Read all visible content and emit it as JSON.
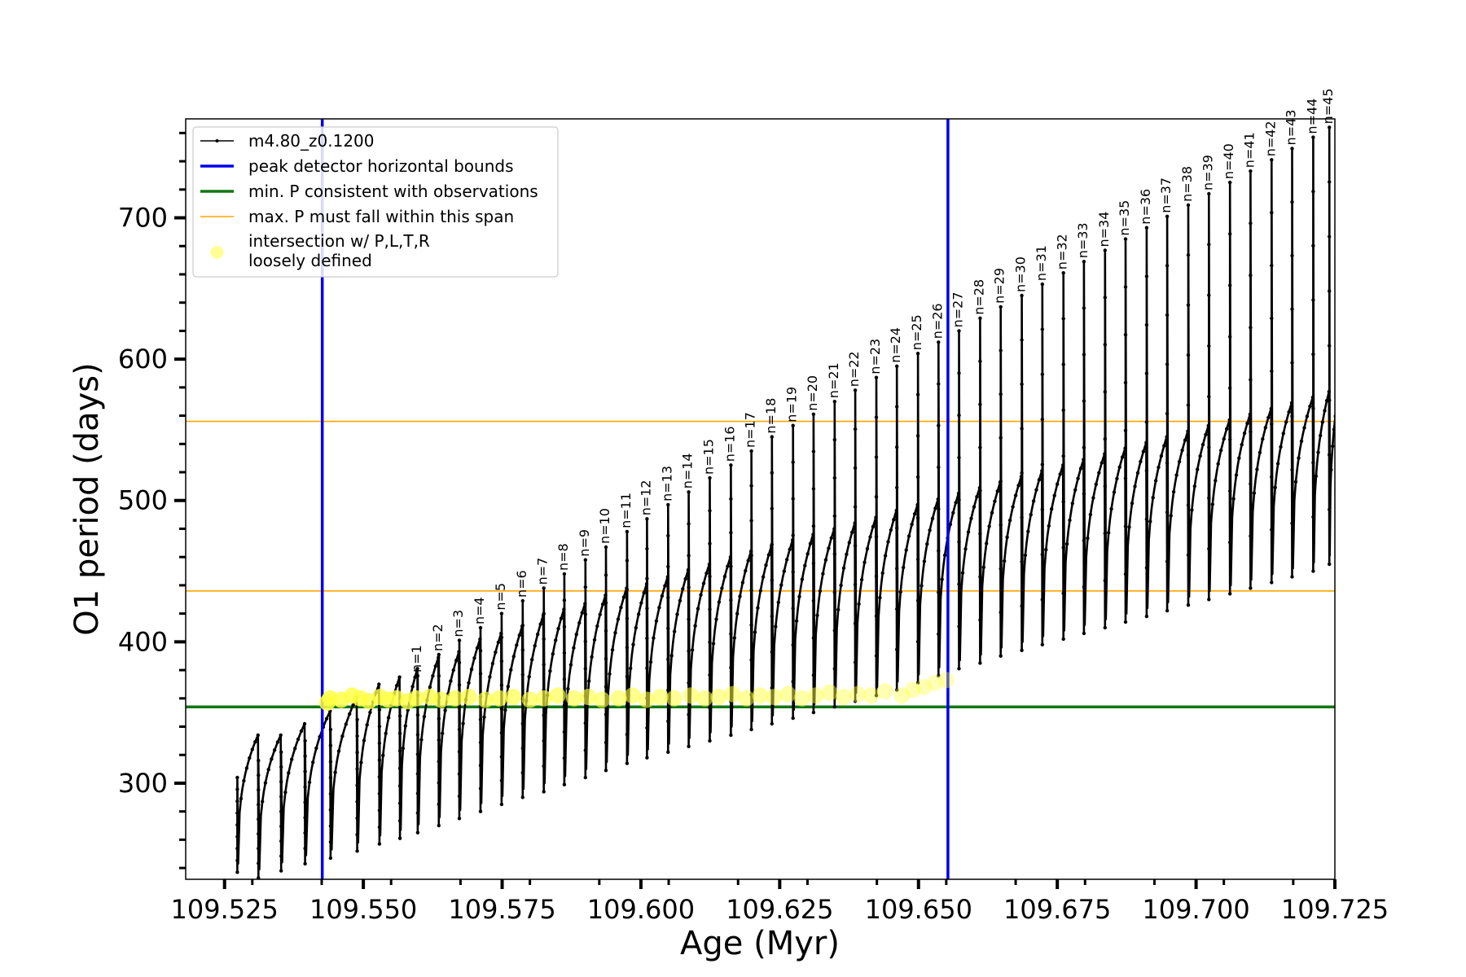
{
  "chart_data": {
    "type": "line",
    "xlabel": "Age (Myr)",
    "ylabel": "O1 period (days)",
    "xlim": [
      109.518,
      109.725
    ],
    "ylim": [
      232,
      770
    ],
    "x_ticks": [
      109.525,
      109.55,
      109.575,
      109.6,
      109.625,
      109.65,
      109.675,
      109.7,
      109.725
    ],
    "x_tick_labels": [
      "109.525",
      "109.550",
      "109.575",
      "109.600",
      "109.625",
      "109.650",
      "109.675",
      "109.700",
      "109.725"
    ],
    "y_ticks": [
      300,
      400,
      500,
      600,
      700
    ],
    "y_tick_labels": [
      "300",
      "400",
      "500",
      "600",
      "700"
    ],
    "grid": false,
    "legend": {
      "placement": "top-left",
      "entries": [
        {
          "label": "m4.80_z0.1200",
          "color": "#000000",
          "style": "line-marker"
        },
        {
          "label": "peak detector horizontal bounds",
          "color": "#0000ee",
          "style": "thick-line"
        },
        {
          "label": "min. P consistent with observations",
          "color": "#117711",
          "style": "thick-line"
        },
        {
          "label": "max. P must fall within this span",
          "color": "#ffa500",
          "style": "thin-line"
        },
        {
          "label": "intersection w/ P,L,T,R",
          "label2": "loosely defined",
          "color": "#ffff66",
          "style": "dot"
        }
      ]
    },
    "vertical_lines": [
      {
        "x": 109.5426,
        "color": "#0000ee",
        "name": "peak detector horizontal bounds"
      },
      {
        "x": 109.6553,
        "color": "#0000ee",
        "name": "peak detector horizontal bounds"
      }
    ],
    "horizontal_lines": [
      {
        "y": 354,
        "color": "#117711",
        "name": "min. P consistent with observations"
      },
      {
        "y": 436,
        "color": "#ffa500",
        "name": "max. P must fall within this span"
      },
      {
        "y": 556,
        "color": "#ffa500",
        "name": "max. P must fall within this span"
      }
    ],
    "series": [
      {
        "name": "m4.80_z0.1200",
        "color": "#000000",
        "pulses": [
          {
            "start": 109.5273,
            "min": 237,
            "peak": 304,
            "plateau": 334
          },
          {
            "start": 109.5311,
            "min": 233,
            "peak": 316,
            "plateau": 334
          },
          {
            "start": 109.5352,
            "min": 238,
            "peak": 322,
            "plateau": 342
          },
          {
            "start": 109.5395,
            "min": 243,
            "peak": 330,
            "plateau": 351
          },
          {
            "start": 109.5441,
            "min": 247,
            "peak": 338,
            "plateau": 361
          },
          {
            "start": 109.5489,
            "min": 252,
            "peak": 345,
            "plateau": 370
          },
          {
            "start": 109.5529,
            "min": 257,
            "peak": 352,
            "plateau": 375
          },
          {
            "start": 109.5566,
            "min": 261,
            "peak": 360,
            "plateau": 381
          },
          {
            "start": 109.5598,
            "min": 265,
            "peak": 376,
            "plateau": 389,
            "n": "n=1"
          },
          {
            "start": 109.5636,
            "min": 270,
            "peak": 391,
            "plateau": 393,
            "n": "n=2"
          },
          {
            "start": 109.5673,
            "min": 275,
            "peak": 401,
            "plateau": 402,
            "n": "n=3"
          },
          {
            "start": 109.5711,
            "min": 280,
            "peak": 410,
            "plateau": 406,
            "n": "n=4"
          },
          {
            "start": 109.5749,
            "min": 285,
            "peak": 420,
            "plateau": 411,
            "n": "n=5"
          },
          {
            "start": 109.5787,
            "min": 290,
            "peak": 429,
            "plateau": 419,
            "n": "n=6"
          },
          {
            "start": 109.5825,
            "min": 294,
            "peak": 438,
            "plateau": 423,
            "n": "n=7"
          },
          {
            "start": 109.5862,
            "min": 299,
            "peak": 448,
            "plateau": 427,
            "n": "n=8"
          },
          {
            "start": 109.59,
            "min": 304,
            "peak": 458,
            "plateau": 433,
            "n": "n=9"
          },
          {
            "start": 109.5937,
            "min": 309,
            "peak": 467,
            "plateau": 438,
            "n": "n=10"
          },
          {
            "start": 109.5975,
            "min": 314,
            "peak": 478,
            "plateau": 441,
            "n": "n=11"
          },
          {
            "start": 109.6011,
            "min": 318,
            "peak": 487,
            "plateau": 446,
            "n": "n=12"
          },
          {
            "start": 109.6049,
            "min": 322,
            "peak": 497,
            "plateau": 451,
            "n": "n=13"
          },
          {
            "start": 109.6086,
            "min": 326,
            "peak": 506,
            "plateau": 455,
            "n": "n=14"
          },
          {
            "start": 109.6124,
            "min": 330,
            "peak": 516,
            "plateau": 460,
            "n": "n=15"
          },
          {
            "start": 109.6162,
            "min": 334,
            "peak": 525,
            "plateau": 464,
            "n": "n=16"
          },
          {
            "start": 109.6199,
            "min": 338,
            "peak": 535,
            "plateau": 468,
            "n": "n=17"
          },
          {
            "start": 109.6236,
            "min": 342,
            "peak": 545,
            "plateau": 472,
            "n": "n=18"
          },
          {
            "start": 109.6274,
            "min": 346,
            "peak": 553,
            "plateau": 476,
            "n": "n=19"
          },
          {
            "start": 109.6311,
            "min": 350,
            "peak": 561,
            "plateau": 480,
            "n": "n=20"
          },
          {
            "start": 109.6349,
            "min": 354,
            "peak": 570,
            "plateau": 484,
            "n": "n=21"
          },
          {
            "start": 109.6386,
            "min": 358,
            "peak": 578,
            "plateau": 488,
            "n": "n=22"
          },
          {
            "start": 109.6424,
            "min": 362,
            "peak": 587,
            "plateau": 493,
            "n": "n=23"
          },
          {
            "start": 109.6461,
            "min": 366,
            "peak": 595,
            "plateau": 497,
            "n": "n=24"
          },
          {
            "start": 109.6499,
            "min": 371,
            "peak": 604,
            "plateau": 501,
            "n": "n=25"
          },
          {
            "start": 109.6536,
            "min": 376,
            "peak": 612,
            "plateau": 505,
            "n": "n=26"
          },
          {
            "start": 109.6573,
            "min": 381,
            "peak": 620,
            "plateau": 509,
            "n": "n=27"
          },
          {
            "start": 109.6611,
            "min": 385,
            "peak": 629,
            "plateau": 513,
            "n": "n=28"
          },
          {
            "start": 109.6648,
            "min": 390,
            "peak": 637,
            "plateau": 517,
            "n": "n=29"
          },
          {
            "start": 109.6686,
            "min": 394,
            "peak": 645,
            "plateau": 521,
            "n": "n=30"
          },
          {
            "start": 109.6723,
            "min": 398,
            "peak": 653,
            "plateau": 525,
            "n": "n=31"
          },
          {
            "start": 109.6761,
            "min": 402,
            "peak": 661,
            "plateau": 529,
            "n": "n=32"
          },
          {
            "start": 109.6798,
            "min": 406,
            "peak": 669,
            "plateau": 533,
            "n": "n=33"
          },
          {
            "start": 109.6836,
            "min": 410,
            "peak": 677,
            "plateau": 537,
            "n": "n=34"
          },
          {
            "start": 109.6873,
            "min": 414,
            "peak": 685,
            "plateau": 541,
            "n": "n=35"
          },
          {
            "start": 109.6911,
            "min": 418,
            "peak": 693,
            "plateau": 545,
            "n": "n=36"
          },
          {
            "start": 109.6948,
            "min": 422,
            "peak": 701,
            "plateau": 549,
            "n": "n=37"
          },
          {
            "start": 109.6986,
            "min": 426,
            "peak": 709,
            "plateau": 553,
            "n": "n=38"
          },
          {
            "start": 109.7023,
            "min": 430,
            "peak": 717,
            "plateau": 557,
            "n": "n=39"
          },
          {
            "start": 109.7061,
            "min": 434,
            "peak": 725,
            "plateau": 561,
            "n": "n=40"
          },
          {
            "start": 109.7098,
            "min": 438,
            "peak": 733,
            "plateau": 565,
            "n": "n=41"
          },
          {
            "start": 109.7136,
            "min": 442,
            "peak": 741,
            "plateau": 569,
            "n": "n=42"
          },
          {
            "start": 109.7173,
            "min": 446,
            "peak": 749,
            "plateau": 573,
            "n": "n=43"
          },
          {
            "start": 109.7211,
            "min": 450,
            "peak": 757,
            "plateau": 577,
            "n": "n=44"
          },
          {
            "start": 109.724,
            "min": 455,
            "peak": 764,
            "plateau": 581,
            "n": "n=45"
          }
        ],
        "end": 109.7259
      }
    ],
    "intersections": {
      "name": "intersection w/ P,L,T,R",
      "color": "#ffff44",
      "points": [
        {
          "x": 109.5435,
          "y": 357
        },
        {
          "x": 109.544,
          "y": 360
        },
        {
          "x": 109.546,
          "y": 359
        },
        {
          "x": 109.548,
          "y": 362
        },
        {
          "x": 109.5495,
          "y": 360
        },
        {
          "x": 109.551,
          "y": 358
        },
        {
          "x": 109.553,
          "y": 361
        },
        {
          "x": 109.5545,
          "y": 359
        },
        {
          "x": 109.556,
          "y": 360
        },
        {
          "x": 109.558,
          "y": 358
        },
        {
          "x": 109.5595,
          "y": 360
        },
        {
          "x": 109.562,
          "y": 361
        },
        {
          "x": 109.564,
          "y": 359
        },
        {
          "x": 109.5665,
          "y": 360
        },
        {
          "x": 109.569,
          "y": 361
        },
        {
          "x": 109.572,
          "y": 359
        },
        {
          "x": 109.5745,
          "y": 360
        },
        {
          "x": 109.577,
          "y": 361
        },
        {
          "x": 109.58,
          "y": 359
        },
        {
          "x": 109.5825,
          "y": 360
        },
        {
          "x": 109.585,
          "y": 362
        },
        {
          "x": 109.588,
          "y": 360
        },
        {
          "x": 109.5905,
          "y": 361
        },
        {
          "x": 109.593,
          "y": 359
        },
        {
          "x": 109.596,
          "y": 360
        },
        {
          "x": 109.5985,
          "y": 362
        },
        {
          "x": 109.601,
          "y": 359
        },
        {
          "x": 109.6035,
          "y": 361
        },
        {
          "x": 109.606,
          "y": 360
        },
        {
          "x": 109.609,
          "y": 362
        },
        {
          "x": 109.6115,
          "y": 360
        },
        {
          "x": 109.614,
          "y": 361
        },
        {
          "x": 109.6165,
          "y": 363
        },
        {
          "x": 109.619,
          "y": 360
        },
        {
          "x": 109.6215,
          "y": 362
        },
        {
          "x": 109.624,
          "y": 361
        },
        {
          "x": 109.6265,
          "y": 363
        },
        {
          "x": 109.629,
          "y": 360
        },
        {
          "x": 109.6315,
          "y": 362
        },
        {
          "x": 109.634,
          "y": 364
        },
        {
          "x": 109.6365,
          "y": 361
        },
        {
          "x": 109.639,
          "y": 363
        },
        {
          "x": 109.6415,
          "y": 362
        },
        {
          "x": 109.644,
          "y": 365
        },
        {
          "x": 109.647,
          "y": 362
        },
        {
          "x": 109.649,
          "y": 366
        },
        {
          "x": 109.651,
          "y": 368
        },
        {
          "x": 109.653,
          "y": 371
        },
        {
          "x": 109.655,
          "y": 373
        }
      ]
    }
  }
}
